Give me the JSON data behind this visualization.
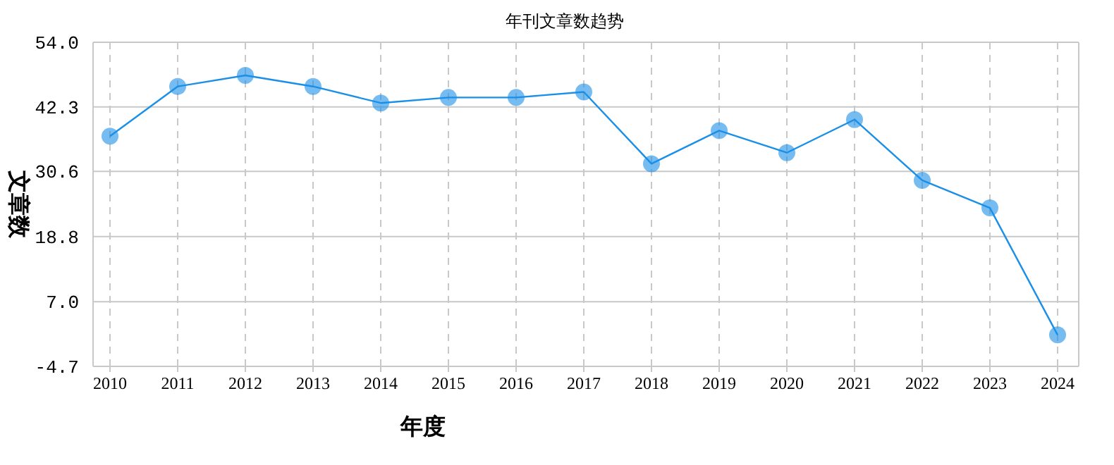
{
  "chart_data": {
    "type": "line",
    "title": "年刊文章数趋势",
    "xlabel": "年度",
    "ylabel": "文章数",
    "categories": [
      "2010",
      "2011",
      "2012",
      "2013",
      "2014",
      "2015",
      "2016",
      "2017",
      "2018",
      "2019",
      "2020",
      "2021",
      "2022",
      "2023",
      "2024"
    ],
    "series": [
      {
        "color": "#1a8fe8",
        "values": [
          37,
          46,
          48,
          46,
          43,
          44,
          44,
          45,
          32,
          38,
          34,
          40,
          29,
          24,
          1
        ]
      }
    ],
    "ylim": [
      -4.7,
      54.0
    ],
    "yticks": [
      {
        "value": -4.7,
        "label": "-4.7"
      },
      {
        "value": 7.0,
        "label": "7.0"
      },
      {
        "value": 18.8,
        "label": "18.8"
      },
      {
        "value": 30.6,
        "label": "30.6"
      },
      {
        "value": 42.3,
        "label": "42.3"
      },
      {
        "value": 54.0,
        "label": "54.0"
      }
    ],
    "grid": true,
    "marker": "circle",
    "line_style": "solid"
  }
}
